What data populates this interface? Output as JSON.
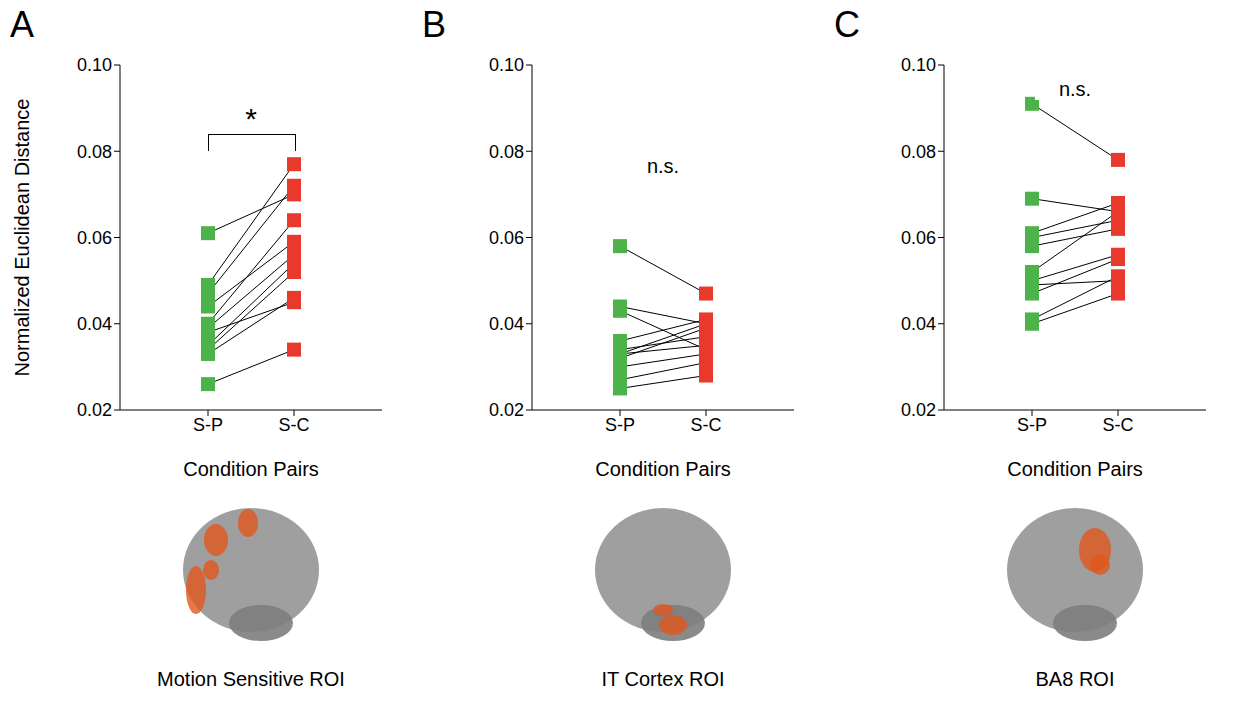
{
  "chart_data": [
    {
      "type": "line",
      "title": "A",
      "subtitle": "Motion Sensitive ROI",
      "annotation": "*",
      "y_label": "Normalized Euclidean Distance",
      "x_label": "Condition Pairs",
      "categories": [
        "S-P",
        "S-C"
      ],
      "colors": [
        "#4cb34a",
        "#e8392c"
      ],
      "color": "#000000",
      "marker": "square",
      "ylim": [
        0.02,
        0.1
      ],
      "yticks": [
        0.02,
        0.04,
        0.06,
        0.08,
        {
          "value": 0.1,
          "label": "0.10"
        }
      ],
      "series": [
        {
          "values": [
            0.061,
            0.07
          ]
        },
        {
          "values": [
            0.049,
            0.077
          ]
        },
        {
          "values": [
            0.047,
            0.072
          ]
        },
        {
          "values": [
            0.044,
            0.059
          ]
        },
        {
          "values": [
            0.04,
            0.064
          ]
        },
        {
          "values": [
            0.039,
            0.056
          ]
        },
        {
          "values": [
            0.035,
            0.054
          ]
        },
        {
          "values": [
            0.034,
            0.052
          ]
        },
        {
          "values": [
            0.033,
            0.046
          ]
        },
        {
          "values": [
            0.038,
            0.045
          ]
        },
        {
          "values": [
            0.026,
            0.034
          ]
        }
      ]
    },
    {
      "type": "line",
      "title": "B",
      "subtitle": "IT Cortex ROI",
      "annotation": "n.s.",
      "x_label": "Condition Pairs",
      "categories": [
        "S-P",
        "S-C"
      ],
      "colors": [
        "#4cb34a",
        "#e8392c"
      ],
      "color": "#000000",
      "marker": "square",
      "ylim": [
        0.02,
        0.1
      ],
      "yticks": [
        0.02,
        0.04,
        0.06,
        0.08,
        {
          "value": 0.1,
          "label": "0.10"
        }
      ],
      "series": [
        {
          "values": [
            0.058,
            0.047
          ]
        },
        {
          "values": [
            0.044,
            0.04
          ]
        },
        {
          "values": [
            0.043,
            0.034
          ]
        },
        {
          "values": [
            0.036,
            0.041
          ]
        },
        {
          "values": [
            0.034,
            0.037
          ]
        },
        {
          "values": [
            0.033,
            0.04
          ]
        },
        {
          "values": [
            0.033,
            0.035
          ]
        },
        {
          "values": [
            0.032,
            0.039
          ]
        },
        {
          "values": [
            0.03,
            0.033
          ]
        },
        {
          "values": [
            0.027,
            0.031
          ]
        },
        {
          "values": [
            0.025,
            0.028
          ]
        }
      ]
    },
    {
      "type": "line",
      "title": "C",
      "subtitle": "BA8 ROI",
      "annotation": "n.s.",
      "x_label": "Condition Pairs",
      "categories": [
        "S-P",
        "S-C"
      ],
      "colors": [
        "#4cb34a",
        "#e8392c"
      ],
      "color": "#000000",
      "marker": "square",
      "ylim": [
        0.02,
        0.1
      ],
      "yticks": [
        0.02,
        0.04,
        0.06,
        0.08,
        {
          "value": 0.1,
          "label": "0.10"
        }
      ],
      "series": [
        {
          "values": [
            0.091,
            0.078
          ]
        },
        {
          "values": [
            0.069,
            0.066
          ]
        },
        {
          "values": [
            0.061,
            0.068
          ]
        },
        {
          "values": [
            0.06,
            0.064
          ]
        },
        {
          "values": [
            0.058,
            0.062
          ]
        },
        {
          "values": [
            0.052,
            0.066
          ]
        },
        {
          "values": [
            0.05,
            0.056
          ]
        },
        {
          "values": [
            0.049,
            0.05
          ]
        },
        {
          "values": [
            0.047,
            0.055
          ]
        },
        {
          "values": [
            0.041,
            0.051
          ]
        },
        {
          "values": [
            0.04,
            0.047
          ]
        }
      ]
    }
  ]
}
